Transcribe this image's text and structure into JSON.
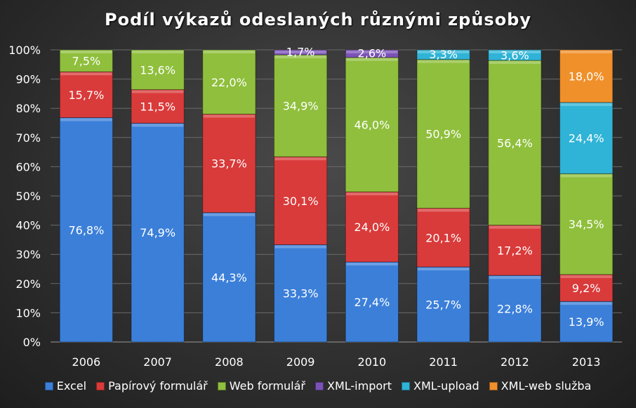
{
  "chart_data": {
    "type": "bar",
    "stacked": true,
    "title": "Podíl výkazů odeslaných různými způsoby",
    "categories": [
      "2006",
      "2007",
      "2008",
      "2009",
      "2010",
      "2011",
      "2012",
      "2013"
    ],
    "ylim": [
      0,
      100
    ],
    "yticks": [
      "0%",
      "10%",
      "20%",
      "30%",
      "40%",
      "50%",
      "60%",
      "70%",
      "80%",
      "90%",
      "100%"
    ],
    "grid": true,
    "legend": "bottom",
    "series": [
      {
        "name": "Excel",
        "color": "#3b7fd9",
        "values": [
          76.8,
          74.9,
          44.3,
          33.3,
          27.4,
          25.7,
          22.8,
          13.9
        ],
        "labels": [
          "76,8%",
          "74,9%",
          "44,3%",
          "33,3%",
          "27,4%",
          "25,7%",
          "22,8%",
          "13,9%"
        ]
      },
      {
        "name": "Papírový formulář",
        "color": "#d93a3a",
        "values": [
          15.7,
          11.5,
          33.7,
          30.1,
          24.0,
          20.1,
          17.2,
          9.2
        ],
        "labels": [
          "15,7%",
          "11,5%",
          "33,7%",
          "30,1%",
          "24,0%",
          "20,1%",
          "17,2%",
          "9,2%"
        ]
      },
      {
        "name": "Web formulář",
        "color": "#8fbf3c",
        "values": [
          7.5,
          13.6,
          22.0,
          34.9,
          46.0,
          50.9,
          56.4,
          34.5
        ],
        "labels": [
          "7,5%",
          "13,6%",
          "22,0%",
          "34,9%",
          "46,0%",
          "50,9%",
          "56,4%",
          "34,5%"
        ]
      },
      {
        "name": "XML-import",
        "color": "#7b52b8",
        "values": [
          0,
          0,
          0,
          1.7,
          2.6,
          0,
          0,
          0
        ],
        "labels": [
          "",
          "",
          "",
          "1,7%",
          "2,6%",
          "",
          "",
          ""
        ]
      },
      {
        "name": "XML-upload",
        "color": "#2fb3d6",
        "values": [
          0,
          0,
          0,
          0,
          0,
          3.3,
          3.6,
          24.4
        ],
        "labels": [
          "",
          "",
          "",
          "",
          "",
          "3,3%",
          "3,6%",
          "24,4%"
        ]
      },
      {
        "name": "XML-web služba",
        "color": "#f0902a",
        "values": [
          0,
          0,
          0,
          0,
          0,
          0,
          0,
          18.0
        ],
        "labels": [
          "",
          "",
          "",
          "",
          "",
          "",
          "",
          "18,0%"
        ]
      }
    ]
  }
}
